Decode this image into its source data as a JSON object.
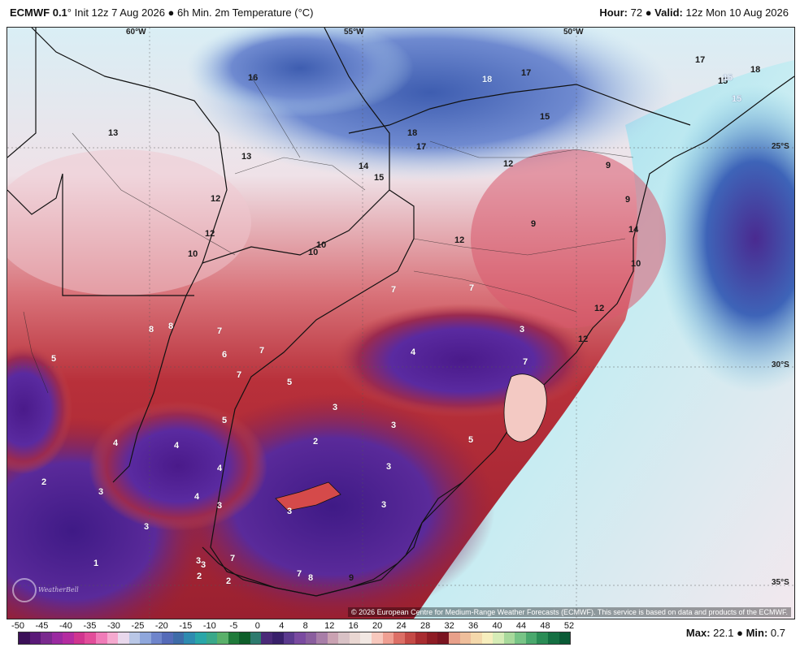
{
  "header": {
    "model": "ECMWF 0.1",
    "init_text": "° Init 12z 7 Aug 2026 ● 6h Min. 2m Temperature (°C)",
    "hour_label": "Hour:",
    "hour_value": "72",
    "valid_label": "● Valid:",
    "valid_value": "12z Mon 10 Aug 2026"
  },
  "map": {
    "lon_labels": [
      "60°W",
      "55°W",
      "50°W"
    ],
    "lat_labels": [
      "25°S",
      "30°S",
      "35°S"
    ],
    "copyright": "© 2026 European Centre for Medium-Range Weather Forecasts (ECMWF). This service is based on data and products of the ECMWF.",
    "logo_text": "WeatherBell",
    "value_labels": [
      {
        "t": "16",
        "c": "dark"
      },
      {
        "t": "18",
        "c": "mid"
      },
      {
        "t": "17",
        "c": "dark"
      },
      {
        "t": "17",
        "c": "dark"
      },
      {
        "t": "15",
        "c": "dark"
      },
      {
        "t": "15",
        "c": "mid"
      },
      {
        "t": "18",
        "c": "dark"
      },
      {
        "t": "15",
        "c": "mid"
      },
      {
        "t": "13",
        "c": "dark"
      },
      {
        "t": "18",
        "c": "dark"
      },
      {
        "t": "17",
        "c": "dark"
      },
      {
        "t": "15",
        "c": "dark"
      },
      {
        "t": "13",
        "c": "dark"
      },
      {
        "t": "14",
        "c": "dark"
      },
      {
        "t": "15",
        "c": "dark"
      },
      {
        "t": "12",
        "c": "dark"
      },
      {
        "t": "9",
        "c": "dark"
      },
      {
        "t": "12",
        "c": "dark"
      },
      {
        "t": "12",
        "c": "dark"
      },
      {
        "t": "9",
        "c": "dark"
      },
      {
        "t": "14",
        "c": "dark"
      },
      {
        "t": "10",
        "c": "dark"
      },
      {
        "t": "10",
        "c": "dark"
      },
      {
        "t": "10",
        "c": "dark"
      },
      {
        "t": "12",
        "c": "dark"
      },
      {
        "t": "9",
        "c": "dark"
      },
      {
        "t": "10",
        "c": "dark"
      },
      {
        "t": "7",
        "c": "light"
      },
      {
        "t": "7",
        "c": "light"
      },
      {
        "t": "12",
        "c": "dark"
      },
      {
        "t": "8",
        "c": "light"
      },
      {
        "t": "8",
        "c": "light"
      },
      {
        "t": "7",
        "c": "light"
      },
      {
        "t": "3",
        "c": "light"
      },
      {
        "t": "12",
        "c": "dark"
      },
      {
        "t": "5",
        "c": "light"
      },
      {
        "t": "6",
        "c": "light"
      },
      {
        "t": "7",
        "c": "light"
      },
      {
        "t": "4",
        "c": "light"
      },
      {
        "t": "7",
        "c": "light"
      },
      {
        "t": "7",
        "c": "light"
      },
      {
        "t": "5",
        "c": "light"
      },
      {
        "t": "3",
        "c": "light"
      },
      {
        "t": "5",
        "c": "light"
      },
      {
        "t": "3",
        "c": "light"
      },
      {
        "t": "4",
        "c": "light"
      },
      {
        "t": "4",
        "c": "light"
      },
      {
        "t": "2",
        "c": "light"
      },
      {
        "t": "5",
        "c": "light"
      },
      {
        "t": "2",
        "c": "light"
      },
      {
        "t": "4",
        "c": "light"
      },
      {
        "t": "3",
        "c": "light"
      },
      {
        "t": "3",
        "c": "light"
      },
      {
        "t": "4",
        "c": "light"
      },
      {
        "t": "3",
        "c": "light"
      },
      {
        "t": "3",
        "c": "light"
      },
      {
        "t": "3",
        "c": "light"
      },
      {
        "t": "3",
        "c": "light"
      },
      {
        "t": "1",
        "c": "light"
      },
      {
        "t": "3",
        "c": "light"
      },
      {
        "t": "3",
        "c": "light"
      },
      {
        "t": "7",
        "c": "light"
      },
      {
        "t": "2",
        "c": "light"
      },
      {
        "t": "2",
        "c": "light"
      },
      {
        "t": "7",
        "c": "light"
      },
      {
        "t": "8",
        "c": "light"
      },
      {
        "t": "9",
        "c": "dark"
      }
    ]
  },
  "scale": {
    "ticks": [
      "-50",
      "-45",
      "-40",
      "-35",
      "-30",
      "-25",
      "-20",
      "-15",
      "-10",
      "-5",
      "0",
      "4",
      "8",
      "12",
      "16",
      "20",
      "24",
      "28",
      "32",
      "36",
      "40",
      "44",
      "48",
      "52"
    ],
    "colors": [
      "#3b1058",
      "#5a1a78",
      "#7a2a8e",
      "#9a2aa0",
      "#b42ca0",
      "#d0358f",
      "#e24d9a",
      "#f07bb8",
      "#f5a9cf",
      "#e9d8ec",
      "#b9c7e6",
      "#8fa7dc",
      "#6f85cb",
      "#556bb8",
      "#3e6ca8",
      "#2e8bb0",
      "#29a6a8",
      "#3aa88a",
      "#5ab06a",
      "#1f7a3a",
      "#0e5e2a",
      "#2d7a6e",
      "#4a2a78",
      "#38206a",
      "#5b3a8e",
      "#7a4aa0",
      "#8a5e9e",
      "#a87ea8",
      "#caa2b2",
      "#d9c2c6",
      "#ead7d2",
      "#f2e8e3",
      "#f7c8bd",
      "#ef9f92",
      "#dc6f66",
      "#c44a46",
      "#a82c30",
      "#8e1c24",
      "#7a1420",
      "#e8a08a",
      "#efbe9b",
      "#f4d8ab",
      "#f7eebd",
      "#d6ecb6",
      "#a8d99b",
      "#78c486",
      "#4aa86d",
      "#2a8c55",
      "#146f42",
      "#0a5a36"
    ],
    "max_label": "Max:",
    "max_value": "22.1",
    "sep": "●",
    "min_label": "Min:",
    "min_value": "0.7"
  }
}
